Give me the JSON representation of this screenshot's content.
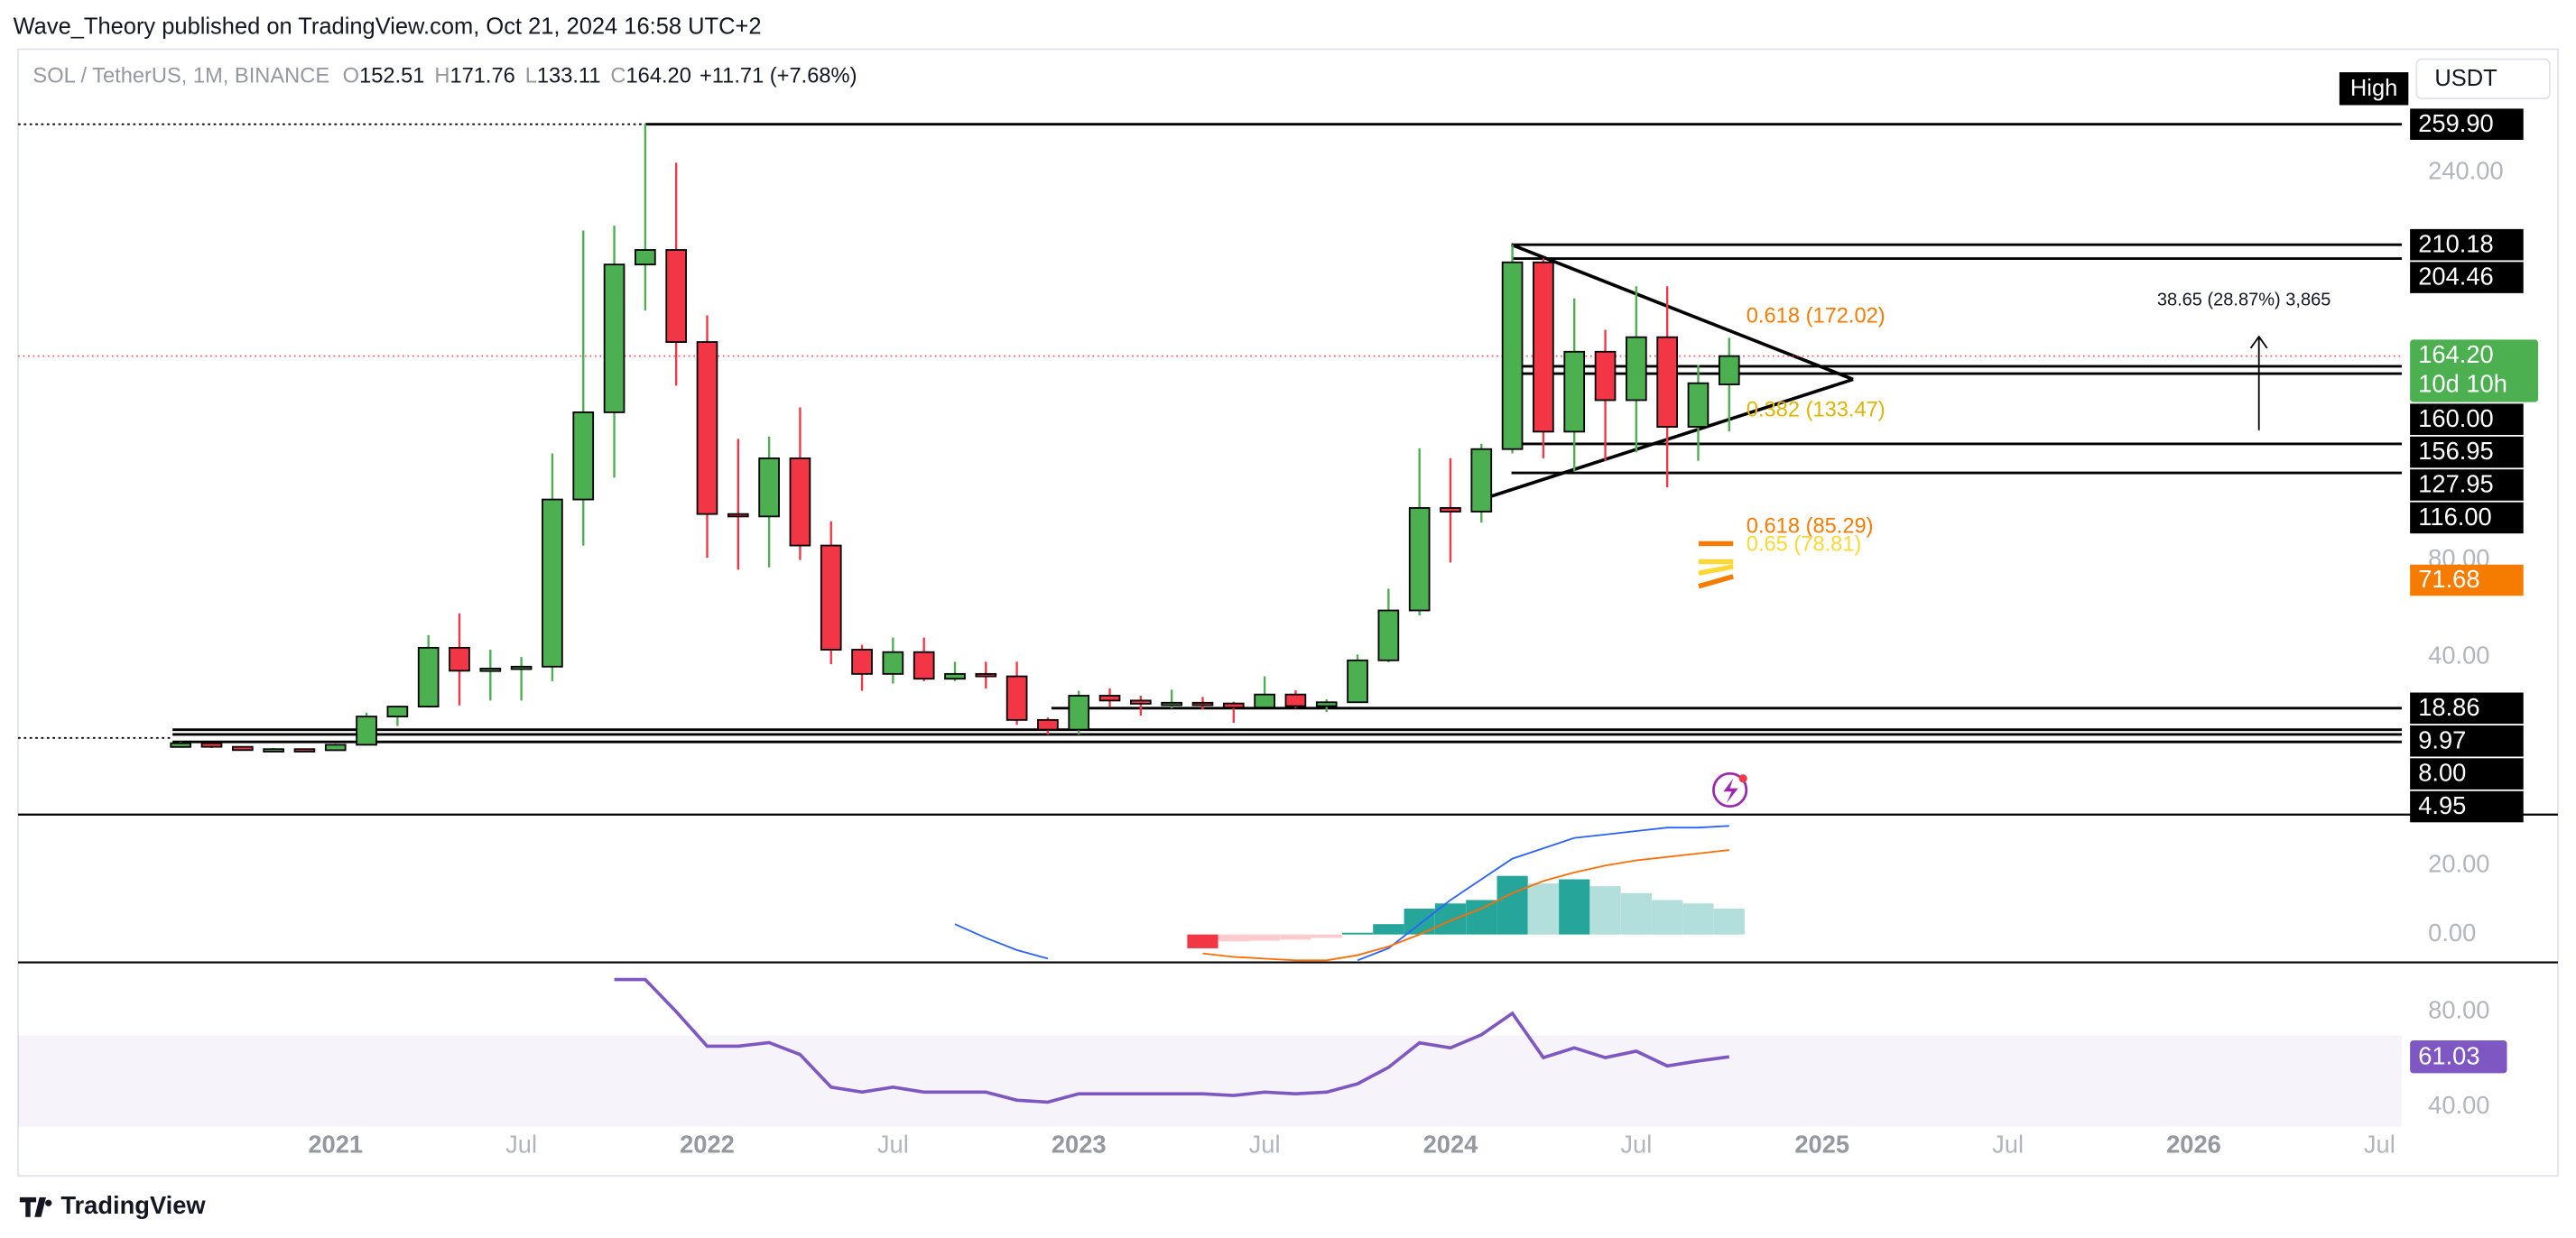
{
  "header": {
    "attribution": "Wave_Theory published on TradingView.com, Oct 21, 2024 16:58 UTC+2",
    "footer": "TradingView"
  },
  "toolbar": {
    "high_tag": "High",
    "currency": "USDT"
  },
  "chart_data": [
    {
      "type": "candlestick",
      "title": "SOL / TetherUS, 1M, BINANCE",
      "legend": [
        {
          "label": "O",
          "value": "152.51"
        },
        {
          "label": "H",
          "value": "171.76"
        },
        {
          "label": "L",
          "value": "133.11"
        },
        {
          "label": "C",
          "value": "164.20"
        }
      ],
      "change": "+11.71 (+7.68%)",
      "categories": [
        null,
        null,
        null,
        null,
        null,
        null,
        null,
        null,
        null,
        null,
        null,
        null,
        null,
        null,
        null,
        null,
        null,
        null,
        null,
        null,
        null,
        null,
        null,
        null,
        null,
        null,
        null,
        null,
        null,
        null,
        null,
        null,
        null,
        null,
        null,
        null,
        null,
        null,
        null,
        null,
        null,
        null,
        null,
        null,
        null,
        null,
        null,
        null,
        null,
        null,
        null
      ],
      "open": [
        2.85,
        4.4,
        2.9,
        1.55,
        1.95,
        1.5,
        3.75,
        15.4,
        19.5,
        43.8,
        34.3,
        35.2,
        36.0,
        105,
        141,
        202,
        208,
        170,
        99,
        98,
        122,
        86,
        43,
        33,
        42,
        31,
        33,
        32,
        14,
        10,
        24,
        22,
        20.7,
        21.1,
        20.8,
        19.1,
        24.5,
        19.7,
        21.3,
        38.6,
        59.2,
        101.5,
        100.0,
        125.8,
        202.9,
        133.0,
        166.0,
        146.0,
        172,
        135,
        152.51
      ],
      "high": [
        4.96,
        4.6,
        3.05,
        2.4,
        2.1,
        4.2,
        17.0,
        19.9,
        49.0,
        58.0,
        43.0,
        40.0,
        124.0,
        216,
        218,
        260,
        244,
        181,
        130,
        131,
        143,
        96,
        45,
        48,
        48,
        38,
        38,
        38,
        15,
        26,
        27,
        24,
        26.5,
        23.5,
        21.5,
        32.0,
        26.2,
        22.5,
        41.0,
        68.2,
        126.1,
        122.0,
        128.0,
        210.2,
        204.5,
        188.0,
        175.0,
        193.0,
        193,
        160.5,
        171.76
      ],
      "low": [
        2.5,
        2.4,
        1.45,
        1.2,
        1.3,
        1.4,
        3.7,
        11.5,
        19.1,
        20.0,
        22.0,
        22.0,
        30.0,
        86,
        114,
        183,
        152,
        81,
        76,
        77,
        80,
        37,
        26,
        29,
        30,
        30,
        27,
        12,
        8,
        8,
        19.5,
        15.8,
        18.8,
        18.4,
        12.8,
        18.8,
        18.9,
        17.3,
        21.0,
        37.8,
        57.1,
        79.0,
        95.5,
        124.0,
        122.0,
        116.7,
        121.0,
        124.5,
        110,
        121,
        133.11
      ],
      "close": [
        4.4,
        2.9,
        1.55,
        1.95,
        1.5,
        3.75,
        15.4,
        19.5,
        43.8,
        34.3,
        35.2,
        36.0,
        105,
        141,
        202,
        208,
        170,
        99,
        98,
        122,
        86,
        43,
        33,
        42,
        31,
        33,
        32,
        14,
        10,
        24,
        22,
        20.7,
        21.1,
        20.8,
        19.1,
        24.5,
        19.7,
        21.3,
        38.6,
        59.2,
        101.5,
        100.0,
        125.8,
        202.9,
        133.0,
        166.0,
        146.0,
        172,
        135,
        153,
        164.2
      ],
      "up_color": "#4caf50",
      "down_color": "#f23645",
      "price_line_color": "#f23645",
      "last_color": "#4caf50",
      "close_label": "164.20",
      "countdown": "10d 10h",
      "xlim": [
        -5.25,
        71.72
      ],
      "ylim": [
        -24.4,
        290.85
      ],
      "xticks": [
        {
          "value": 5,
          "label": "2021"
        },
        {
          "value": 11,
          "label": "Jul"
        },
        {
          "value": 17,
          "label": "2022"
        },
        {
          "value": 23,
          "label": "Jul"
        },
        {
          "value": 29,
          "label": "2023"
        },
        {
          "value": 35,
          "label": "Jul"
        },
        {
          "value": 41,
          "label": "2024"
        },
        {
          "value": 47,
          "label": "Jul"
        },
        {
          "value": 53,
          "label": "2025"
        },
        {
          "value": 59,
          "label": "Jul"
        },
        {
          "value": 65,
          "label": "2026"
        },
        {
          "value": 71,
          "label": "Jul"
        }
      ],
      "yticks": [
        {
          "value": 40,
          "label": "40.00"
        },
        {
          "value": 80,
          "label": "80.00"
        },
        {
          "value": 240,
          "label": "240.00"
        }
      ],
      "price_levels": [
        {
          "value": 259.9,
          "label": "259.90",
          "color": "#000000"
        },
        {
          "value": 210.18,
          "label": "210.18",
          "color": "#000000"
        },
        {
          "value": 204.46,
          "label": "204.46",
          "color": "#000000"
        },
        {
          "value": 160,
          "label": "160.00",
          "color": "#000000"
        },
        {
          "value": 156.95,
          "label": "156.95",
          "color": "#000000"
        },
        {
          "value": 127.95,
          "label": "127.95",
          "color": "#000000"
        },
        {
          "value": 116,
          "label": "116.00",
          "color": "#000000"
        },
        {
          "value": 71.68,
          "label": "71.68",
          "color": "#f57c00"
        },
        {
          "value": 18.86,
          "label": "18.86",
          "color": "#000000"
        },
        {
          "value": 9.97,
          "label": "9.97",
          "color": "#000000"
        },
        {
          "value": 8,
          "label": "8.00",
          "color": "#000000"
        },
        {
          "value": 4.95,
          "label": "4.95",
          "color": "#000000"
        }
      ],
      "annotations": [
        "0.618 (172.02)",
        "0.382 (133.47)",
        "0.618 (85.29)",
        "0.65 (78.81)",
        "38.65 (28.87%) 3,865"
      ]
    },
    {
      "type": "macd",
      "ylim": [
        -8.1,
        34.3
      ],
      "yticks": [
        {
          "value": 0,
          "label": "0.00"
        },
        {
          "value": 20,
          "label": "20.00"
        }
      ],
      "series": [
        {
          "color": "#2962ff",
          "values": [
            null,
            null,
            null,
            null,
            null,
            null,
            null,
            null,
            null,
            null,
            null,
            null,
            null,
            null,
            null,
            null,
            null,
            null,
            null,
            null,
            null,
            null,
            null,
            null,
            null,
            3,
            -1,
            -4.5,
            -7,
            null,
            null,
            null,
            null,
            null,
            null,
            null,
            null,
            null,
            -7.5,
            -4,
            3,
            10,
            16,
            22,
            25,
            28,
            29,
            30,
            31,
            31,
            31.5
          ]
        },
        {
          "color": "#ff6d00",
          "values": [
            null,
            null,
            null,
            null,
            null,
            null,
            null,
            null,
            null,
            null,
            null,
            null,
            null,
            null,
            null,
            null,
            null,
            null,
            null,
            null,
            null,
            null,
            null,
            null,
            null,
            null,
            null,
            null,
            null,
            null,
            null,
            null,
            null,
            -5.5,
            -6.5,
            -7,
            -7.5,
            -7.5,
            -6,
            -3.5,
            0,
            4,
            7.5,
            12,
            15.5,
            18,
            20,
            21.5,
            22.5,
            23.5,
            24.5
          ]
        }
      ],
      "histogram": [
        null,
        null,
        null,
        null,
        null,
        null,
        null,
        null,
        null,
        null,
        null,
        null,
        null,
        null,
        null,
        null,
        null,
        null,
        null,
        null,
        null,
        null,
        null,
        null,
        null,
        null,
        null,
        null,
        null,
        null,
        null,
        null,
        null,
        -4,
        -2,
        -1.8,
        -1.5,
        -1,
        0.5,
        3,
        7.5,
        9,
        10,
        17,
        14.8,
        16,
        14,
        12,
        10,
        9,
        7.5
      ],
      "histogram_colors": [
        null,
        null,
        null,
        null,
        null,
        null,
        null,
        null,
        null,
        null,
        null,
        null,
        null,
        null,
        null,
        null,
        null,
        null,
        null,
        null,
        null,
        null,
        null,
        null,
        null,
        null,
        null,
        null,
        null,
        null,
        null,
        null,
        null,
        "#f23645",
        "#fccbcd",
        "#fccbcd",
        "#fccbcd",
        "#fccbcd",
        "#26a69a",
        "#26a69a",
        "#26a69a",
        "#26a69a",
        "#26a69a",
        "#26a69a",
        "#b2dfdb",
        "#26a69a",
        "#b2dfdb",
        "#b2dfdb",
        "#b2dfdb",
        "#b2dfdb",
        "#b2dfdb"
      ]
    },
    {
      "type": "line",
      "ylim": [
        31.7,
        99.3
      ],
      "yticks": [
        {
          "value": 40,
          "label": "40.00"
        },
        {
          "value": 80,
          "label": "80.00"
        }
      ],
      "band": [
        30,
        70
      ],
      "color": "#7e57c2",
      "values": [
        null,
        null,
        null,
        null,
        null,
        null,
        null,
        null,
        null,
        null,
        null,
        null,
        null,
        null,
        93.5,
        93.5,
        80,
        65.5,
        65.5,
        67,
        62,
        48.3,
        46.2,
        48.3,
        46.2,
        46.2,
        46.2,
        42.8,
        42,
        45.5,
        45.5,
        45.5,
        45.5,
        45.5,
        44.8,
        46.2,
        45.5,
        46.2,
        49.7,
        56.6,
        66.9,
        64.8,
        70.3,
        79.3,
        60.7,
        64.8,
        60.7,
        63.4,
        57.2,
        59.3,
        61.03
      ]
    }
  ]
}
